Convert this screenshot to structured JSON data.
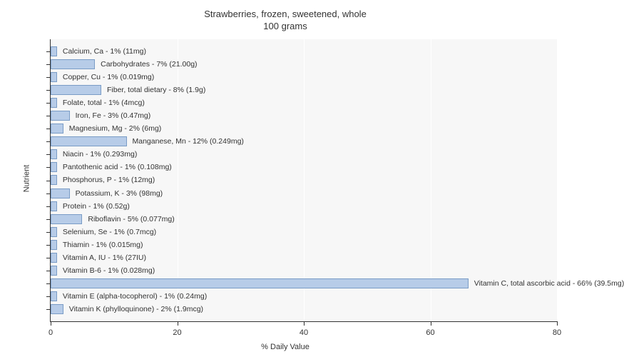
{
  "chart": {
    "type": "bar-horizontal",
    "title_line1": "Strawberries, frozen, sweetened, whole",
    "title_line2": "100 grams",
    "title_fontsize": 13,
    "x_axis_label": "% Daily Value",
    "y_axis_label": "Nutrient",
    "label_fontsize": 11,
    "bar_label_fontsize": 10.5,
    "x_min": 0,
    "x_max": 80,
    "x_ticks": [
      0,
      20,
      40,
      60,
      80
    ],
    "plot_bg": "#f7f7f7",
    "grid_color": "#ffffff",
    "bar_fill": "#b7cce8",
    "bar_border": "#7a9cc6",
    "text_color": "#333333",
    "background_color": "#ffffff",
    "nutrients": [
      {
        "label": "Calcium, Ca - 1% (11mg)",
        "value": 1
      },
      {
        "label": "Carbohydrates - 7% (21.00g)",
        "value": 7
      },
      {
        "label": "Copper, Cu - 1% (0.019mg)",
        "value": 1
      },
      {
        "label": "Fiber, total dietary - 8% (1.9g)",
        "value": 8
      },
      {
        "label": "Folate, total - 1% (4mcg)",
        "value": 1
      },
      {
        "label": "Iron, Fe - 3% (0.47mg)",
        "value": 3
      },
      {
        "label": "Magnesium, Mg - 2% (6mg)",
        "value": 2
      },
      {
        "label": "Manganese, Mn - 12% (0.249mg)",
        "value": 12
      },
      {
        "label": "Niacin - 1% (0.293mg)",
        "value": 1
      },
      {
        "label": "Pantothenic acid - 1% (0.108mg)",
        "value": 1
      },
      {
        "label": "Phosphorus, P - 1% (12mg)",
        "value": 1
      },
      {
        "label": "Potassium, K - 3% (98mg)",
        "value": 3
      },
      {
        "label": "Protein - 1% (0.52g)",
        "value": 1
      },
      {
        "label": "Riboflavin - 5% (0.077mg)",
        "value": 5
      },
      {
        "label": "Selenium, Se - 1% (0.7mcg)",
        "value": 1
      },
      {
        "label": "Thiamin - 1% (0.015mg)",
        "value": 1
      },
      {
        "label": "Vitamin A, IU - 1% (27IU)",
        "value": 1
      },
      {
        "label": "Vitamin B-6 - 1% (0.028mg)",
        "value": 1
      },
      {
        "label": "Vitamin C, total ascorbic acid - 66% (39.5mg)",
        "value": 66
      },
      {
        "label": "Vitamin E (alpha-tocopherol) - 1% (0.24mg)",
        "value": 1
      },
      {
        "label": "Vitamin K (phylloquinone) - 2% (1.9mcg)",
        "value": 2
      }
    ]
  }
}
